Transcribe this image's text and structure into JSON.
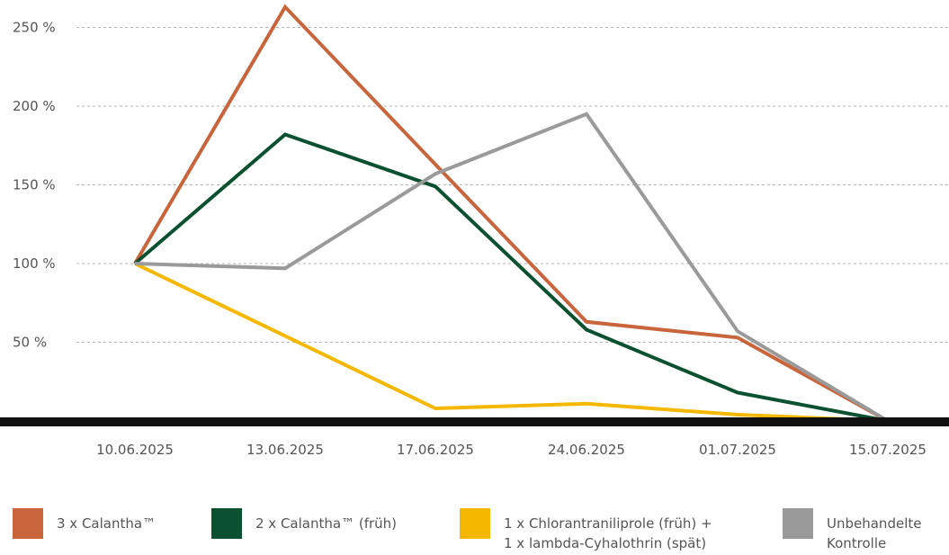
{
  "chart_data": {
    "type": "line",
    "title": "",
    "xlabel": "",
    "ylabel": "",
    "categories": [
      "10.06.2025",
      "13.06.2025",
      "17.06.2025",
      "24.06.2025",
      "01.07.2025",
      "15.07.2025"
    ],
    "y_tick_labels": [
      "250 %",
      "200 %",
      "150 %",
      "100 %",
      "50 %"
    ],
    "y_ticks": [
      250,
      200,
      150,
      100,
      50
    ],
    "ylim": [
      0,
      260
    ],
    "grid": "horizontal dashed",
    "legend_position": "bottom",
    "series": [
      {
        "name": "3 x Calantha™",
        "color": "#c8653c",
        "values": [
          100,
          263,
          163,
          63,
          53,
          0
        ]
      },
      {
        "name": "2 x Calantha™ (früh)",
        "color": "#0b5030",
        "values": [
          100,
          182,
          149,
          58,
          18,
          0
        ]
      },
      {
        "name": "1 x Chlorantraniliprole (früh) + 1 x lambda-Cyhalothrin (spät)",
        "color": "#f4b800",
        "values": [
          100,
          54,
          8,
          11,
          4,
          0
        ]
      },
      {
        "name": "Unbehandelte Kontrolle",
        "color": "#9a9a9a",
        "values": [
          100,
          97,
          157,
          195,
          57,
          0
        ]
      }
    ]
  },
  "legend": {
    "items": [
      {
        "label": "3 x Calantha™",
        "color": "#c8653c"
      },
      {
        "label": "2 x Calantha™ (früh)",
        "color": "#0b5030"
      },
      {
        "label": "1 x Chlorantraniliprole  (früh) +\n1 x lambda-Cyhalothrin (spät)",
        "color": "#f4b800"
      },
      {
        "label": "Unbehandelte\nKontrolle",
        "color": "#9a9a9a"
      }
    ]
  }
}
